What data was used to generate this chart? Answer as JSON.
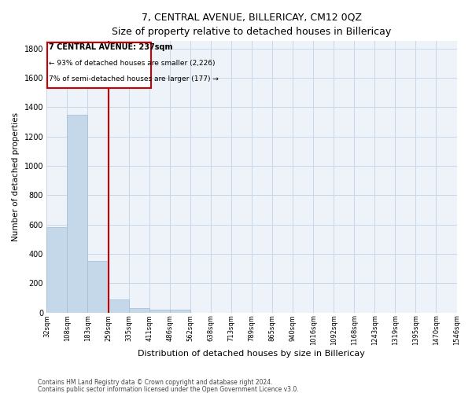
{
  "title": "7, CENTRAL AVENUE, BILLERICAY, CM12 0QZ",
  "subtitle": "Size of property relative to detached houses in Billericay",
  "xlabel": "Distribution of detached houses by size in Billericay",
  "ylabel": "Number of detached properties",
  "footnote1": "Contains HM Land Registry data © Crown copyright and database right 2024.",
  "footnote2": "Contains public sector information licensed under the Open Government Licence v3.0.",
  "bar_values": [
    580,
    1350,
    350,
    90,
    30,
    20,
    20,
    0,
    0,
    0,
    0,
    0,
    0,
    0,
    0,
    0,
    0,
    0,
    0,
    0
  ],
  "bar_labels": [
    "32sqm",
    "108sqm",
    "183sqm",
    "259sqm",
    "335sqm",
    "411sqm",
    "486sqm",
    "562sqm",
    "638sqm",
    "713sqm",
    "789sqm",
    "865sqm",
    "940sqm",
    "1016sqm",
    "1092sqm",
    "1168sqm",
    "1243sqm",
    "1319sqm",
    "1395sqm",
    "1470sqm",
    "1546sqm"
  ],
  "bar_color": "#c5d8ea",
  "bar_edgecolor": "#a0bcd4",
  "vline_color": "#cc0000",
  "ylim": [
    0,
    1850
  ],
  "yticks": [
    0,
    200,
    400,
    600,
    800,
    1000,
    1200,
    1400,
    1600,
    1800
  ],
  "annotation_title": "7 CENTRAL AVENUE: 237sqm",
  "annotation_line1": "← 93% of detached houses are smaller (2,226)",
  "annotation_line2": "7% of semi-detached houses are larger (177) →",
  "annotation_box_color": "#cc0000",
  "grid_color": "#c8d8e8",
  "bg_color": "#edf3f8"
}
